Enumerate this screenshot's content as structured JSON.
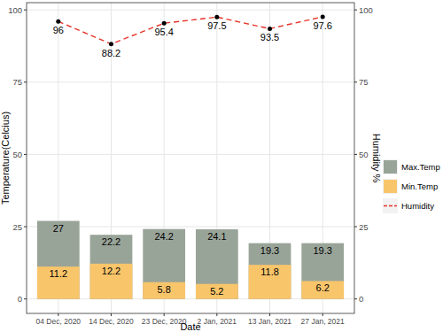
{
  "chart_data": {
    "type": "bar",
    "x_label": "Date",
    "y_label": "Temperature(Celcius)",
    "y2_label": "Humidity %",
    "categories": [
      "04 Dec, 2020",
      "14 Dec, 2020",
      "23 Dec, 2020",
      "2 Jan, 2021",
      "13 Jan, 2021",
      "27 Jan, 2021"
    ],
    "series": [
      {
        "name": "Max.Temp",
        "type": "bar",
        "color": "#99a499",
        "values": [
          27,
          22.2,
          24.2,
          24.1,
          19.3,
          19.3
        ]
      },
      {
        "name": "Min.Temp",
        "type": "bar",
        "color": "#f9c56b",
        "values": [
          11.2,
          12.2,
          5.8,
          5.2,
          11.8,
          6.2
        ]
      },
      {
        "name": "Humidity",
        "type": "line",
        "axis": "y2",
        "color": "#e8332a",
        "line_style": "dashed",
        "marker": "circle",
        "values": [
          96,
          88.2,
          95.4,
          97.5,
          93.5,
          97.6
        ]
      }
    ],
    "ylim": [
      -5,
      102.5
    ],
    "yticks": [
      0,
      25,
      50,
      75,
      100
    ],
    "y2lim": [
      -5,
      102.5
    ],
    "y2ticks": [
      0,
      25,
      50,
      75,
      100
    ],
    "stacked": false,
    "data_labels": true,
    "grid": true,
    "legend": "right"
  }
}
